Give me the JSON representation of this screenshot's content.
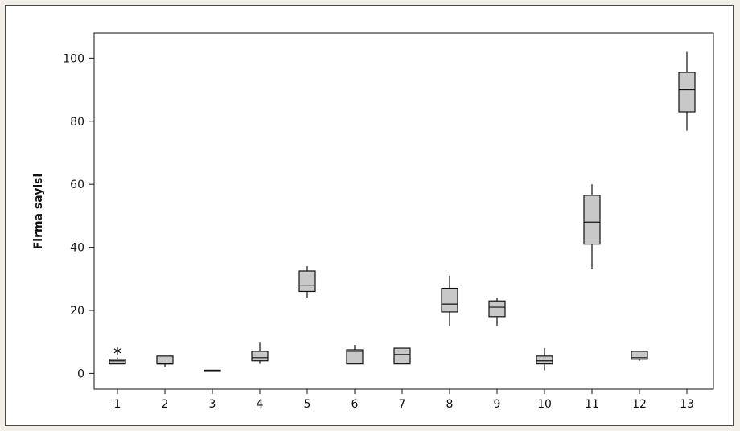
{
  "chart_data": {
    "type": "boxplot",
    "title": "",
    "xlabel": "",
    "ylabel": "Firma sayisi",
    "ylim": [
      -5,
      108
    ],
    "yticks": [
      0,
      20,
      40,
      60,
      80,
      100
    ],
    "categories": [
      "1",
      "2",
      "3",
      "4",
      "5",
      "6",
      "7",
      "8",
      "9",
      "10",
      "11",
      "12",
      "13"
    ],
    "boxes": [
      {
        "category": "1",
        "whisker_low": 3,
        "q1": 3,
        "median": 4,
        "q3": 4.5,
        "whisker_high": 5,
        "outliers": [
          6.5
        ]
      },
      {
        "category": "2",
        "whisker_low": 2,
        "q1": 3,
        "median": 3,
        "q3": 5.5,
        "whisker_high": 5.5,
        "outliers": []
      },
      {
        "category": "3",
        "whisker_low": 0.8,
        "q1": 0.8,
        "median": 1,
        "q3": 1,
        "whisker_high": 1,
        "outliers": []
      },
      {
        "category": "4",
        "whisker_low": 3,
        "q1": 4,
        "median": 5,
        "q3": 7,
        "whisker_high": 10,
        "outliers": []
      },
      {
        "category": "5",
        "whisker_low": 24,
        "q1": 26,
        "median": 28,
        "q3": 32.5,
        "whisker_high": 34,
        "outliers": []
      },
      {
        "category": "6",
        "whisker_low": 3,
        "q1": 3,
        "median": 7,
        "q3": 7.5,
        "whisker_high": 9,
        "outliers": []
      },
      {
        "category": "7",
        "whisker_low": 3,
        "q1": 3,
        "median": 6,
        "q3": 8,
        "whisker_high": 8,
        "outliers": []
      },
      {
        "category": "8",
        "whisker_low": 15,
        "q1": 19.5,
        "median": 22,
        "q3": 27,
        "whisker_high": 31,
        "outliers": []
      },
      {
        "category": "9",
        "whisker_low": 15,
        "q1": 18,
        "median": 21,
        "q3": 23,
        "whisker_high": 24,
        "outliers": []
      },
      {
        "category": "10",
        "whisker_low": 1,
        "q1": 3,
        "median": 4,
        "q3": 5.5,
        "whisker_high": 8,
        "outliers": []
      },
      {
        "category": "11",
        "whisker_low": 33,
        "q1": 41,
        "median": 48,
        "q3": 56.5,
        "whisker_high": 60,
        "outliers": []
      },
      {
        "category": "12",
        "whisker_low": 4,
        "q1": 4.5,
        "median": 5,
        "q3": 7,
        "whisker_high": 7,
        "outliers": []
      },
      {
        "category": "13",
        "whisker_low": 77,
        "q1": 83,
        "median": 90,
        "q3": 95.5,
        "whisker_high": 102,
        "outliers": []
      }
    ],
    "box_fill": "#c8c8c8",
    "line_color": "#111111",
    "outlier_marker": "asterisk",
    "grid": false,
    "legend": "none"
  }
}
